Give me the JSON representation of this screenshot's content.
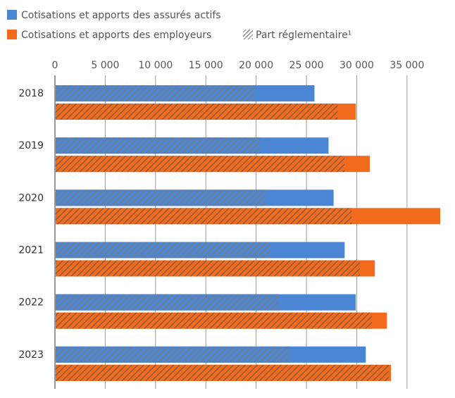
{
  "chart_data": {
    "type": "bar",
    "orientation": "horizontal",
    "categories": [
      "2018",
      "2019",
      "2020",
      "2021",
      "2022",
      "2023"
    ],
    "series": [
      {
        "name": "Cotisations et apports des assurés actifs",
        "color": "#4a86d4",
        "values": [
          25800,
          27200,
          27700,
          28800,
          29900,
          30900
        ],
        "part_reglementaire": [
          19800,
          20400,
          20900,
          21400,
          22300,
          23400
        ]
      },
      {
        "name": "Cotisations et apports des employeurs",
        "color": "#f26b1d",
        "values": [
          29900,
          31300,
          38300,
          31800,
          33000,
          33400
        ],
        "part_reglementaire": [
          28100,
          28800,
          29500,
          30300,
          31500,
          33200
        ]
      }
    ],
    "hatch_legend": "Part réglementaire¹",
    "xlim": [
      0,
      38300
    ],
    "xticks": [
      0,
      5000,
      10000,
      15000,
      20000,
      25000,
      30000,
      35000
    ],
    "xtick_labels": [
      "0",
      "5 000",
      "10 000",
      "15 000",
      "20 000",
      "25 000",
      "30 000",
      "35 000"
    ],
    "grid": true,
    "legend_position": "top-left"
  }
}
